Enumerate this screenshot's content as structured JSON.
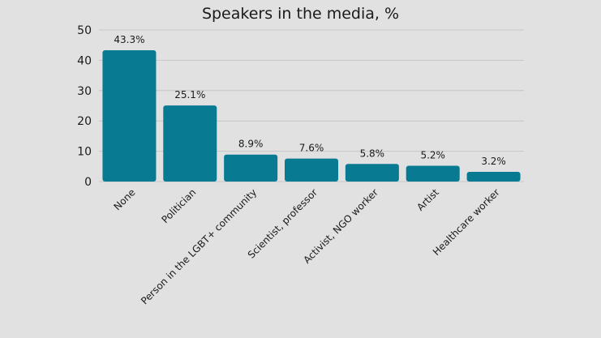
{
  "chart_data": {
    "type": "bar",
    "title": "Speakers in the media, %",
    "categories": [
      "None",
      "Politician",
      "Person in the LGBT+ community",
      "Scientist, professor",
      "Activist, NGO worker",
      "Artist",
      "Healthcare worker"
    ],
    "values": [
      43.3,
      25.1,
      8.9,
      7.6,
      5.8,
      5.2,
      3.2
    ],
    "data_labels": [
      "43.3%",
      "25.1%",
      "8.9%",
      "7.6%",
      "5.8%",
      "5.2%",
      "3.2%"
    ],
    "xlabel": "",
    "ylabel": "",
    "ylim": [
      0,
      50
    ],
    "yticks": [
      0,
      10,
      20,
      30,
      40,
      50
    ],
    "grid": true,
    "bar_color": "#087a92",
    "grid_color": "#c6c6c6",
    "legend": "none"
  }
}
